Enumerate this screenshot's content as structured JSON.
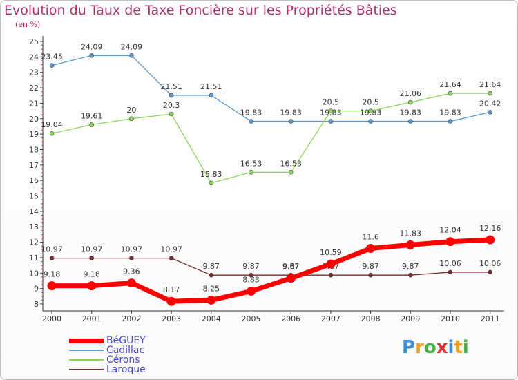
{
  "header": {
    "title": "Evolution du Taux de Taxe Foncière sur les Propriétés Bâties",
    "subtitle": "(en %)"
  },
  "chart_data": {
    "type": "line",
    "title": "Evolution du Taux de Taxe Foncière sur les Propriétés Bâties",
    "ylabel": "(en %)",
    "x": [
      "2000",
      "2001",
      "2002",
      "2003",
      "2004",
      "2005",
      "2006",
      "2007",
      "2008",
      "2009",
      "2010",
      "2011"
    ],
    "ylim": [
      8,
      25
    ],
    "yticks": [
      8,
      9,
      10,
      11,
      12,
      13,
      14,
      15,
      16,
      17,
      18,
      19,
      20,
      21,
      22,
      23,
      24,
      25
    ],
    "grid": false,
    "legend_position": "bottom-left",
    "series": [
      {
        "name": "BéGUEY",
        "color": "#ff0000",
        "values": [
          9.18,
          9.18,
          9.36,
          8.17,
          8.25,
          8.83,
          9.67,
          10.59,
          11.6,
          11.83,
          12.04,
          12.16
        ],
        "labels": [
          "9.18",
          "9.18",
          "9.36",
          "8.17",
          "8.25",
          "8.83",
          "9.67",
          "10.59",
          "11.6",
          "11.83",
          "12.04",
          "12.16"
        ]
      },
      {
        "name": "Cadillac",
        "color": "#5a9ad0",
        "values": [
          23.45,
          24.09,
          24.09,
          21.51,
          21.51,
          19.83,
          19.83,
          19.83,
          19.83,
          19.83,
          19.83,
          20.42
        ],
        "labels": [
          "23.45",
          "24.09",
          "24.09",
          "21.51",
          "21.51",
          "19.83",
          "19.83",
          "19.83",
          "19.83",
          "19.83",
          "19.83",
          "20.42"
        ]
      },
      {
        "name": "Cérons",
        "color": "#8ed65a",
        "values": [
          19.04,
          19.61,
          20,
          20.3,
          15.83,
          16.53,
          16.53,
          20.5,
          20.5,
          21.06,
          21.64,
          21.64
        ],
        "labels": [
          "19.04",
          "19.61",
          "20",
          "20.3",
          "15.83",
          "16.53",
          "16.53",
          "20.5",
          "20.5",
          "21.06",
          "21.64",
          "21.64"
        ]
      },
      {
        "name": "Laroque",
        "color": "#7a2c2c",
        "values": [
          10.97,
          10.97,
          10.97,
          10.97,
          9.87,
          9.87,
          9.87,
          9.87,
          9.87,
          9.87,
          10.06,
          10.06
        ],
        "labels": [
          "10.97",
          "10.97",
          "10.97",
          "10.97",
          "9.87",
          "9.87",
          "9.87",
          "9.87",
          "9.87",
          "9.87",
          "10.06",
          "10.06"
        ]
      }
    ]
  },
  "logo": {
    "text": "Proxiti"
  }
}
